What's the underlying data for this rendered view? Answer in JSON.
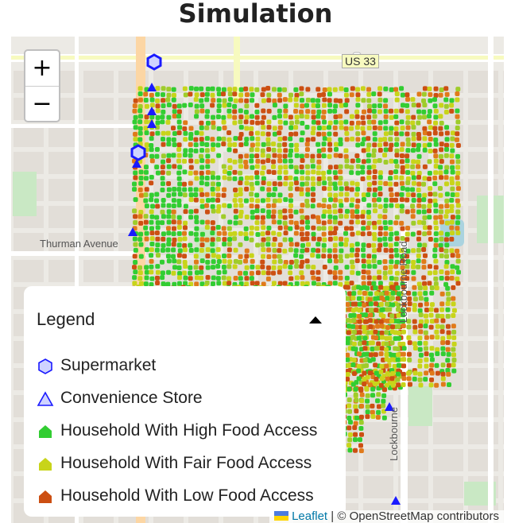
{
  "page": {
    "title": "Simulation"
  },
  "map": {
    "zoom_in_label": "+",
    "zoom_out_label": "−",
    "labels": {
      "route": "US 33",
      "street_thurman": "Thurman Avenue",
      "street_lockbourne": "Lockbourne Road",
      "street_lockbourne_short": "Lockbourne"
    },
    "attribution": {
      "leaflet_link": "Leaflet",
      "separator": " | © ",
      "osm": "OpenStreetMap contributors"
    },
    "colors": {
      "high": "#32cd32",
      "fair": "#c8d41a",
      "low": "#cc4f12",
      "store": "#1a1aff",
      "land": "#eceae5",
      "park": "#c9e8c4",
      "water": "#aad3df"
    }
  },
  "legend": {
    "title": "Legend",
    "items": [
      {
        "label": "Supermarket",
        "icon": "hexagon-icon"
      },
      {
        "label": "Convenience Store",
        "icon": "triangle-icon"
      },
      {
        "label": "Household With High Food Access",
        "icon": "house-high-icon"
      },
      {
        "label": "Household With Fair Food Access",
        "icon": "house-fair-icon"
      },
      {
        "label": "Household With Low Food Access",
        "icon": "house-low-icon"
      }
    ]
  }
}
